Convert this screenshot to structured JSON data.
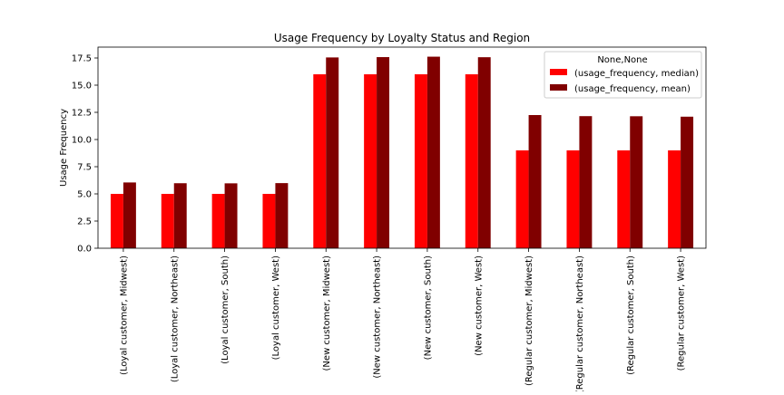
{
  "chart_data": {
    "type": "bar",
    "title": "Usage Frequency by Loyalty Status and Region",
    "xlabel": "",
    "ylabel": "Usage Frequency",
    "ylim": [
      0,
      18.5
    ],
    "yticks": [
      "0.0",
      "2.5",
      "5.0",
      "7.5",
      "10.0",
      "12.5",
      "15.0",
      "17.5"
    ],
    "grid": false,
    "legend_position": "top-right",
    "legend_title": "None,None",
    "categories": [
      "(Loyal customer, Midwest)",
      "(Loyal customer, Northeast)",
      "(Loyal customer, South)",
      "(Loyal customer, West)",
      "(New customer, Midwest)",
      "(New customer, Northeast)",
      "(New customer, South)",
      "(New customer, West)",
      "(Regular customer, Midwest)",
      "(Regular customer, Northeast)",
      "(Regular customer, South)",
      "(Regular customer, West)"
    ],
    "series": [
      {
        "name": "(usage_frequency, median)",
        "color": "#ff0000",
        "values": [
          5,
          5,
          5,
          5,
          16,
          16,
          16,
          16,
          9,
          9,
          9,
          9
        ]
      },
      {
        "name": "(usage_frequency, mean)",
        "color": "#800000",
        "values": [
          6.05,
          5.98,
          5.97,
          5.99,
          17.55,
          17.58,
          17.62,
          17.57,
          12.25,
          12.15,
          12.14,
          12.1
        ]
      }
    ]
  }
}
